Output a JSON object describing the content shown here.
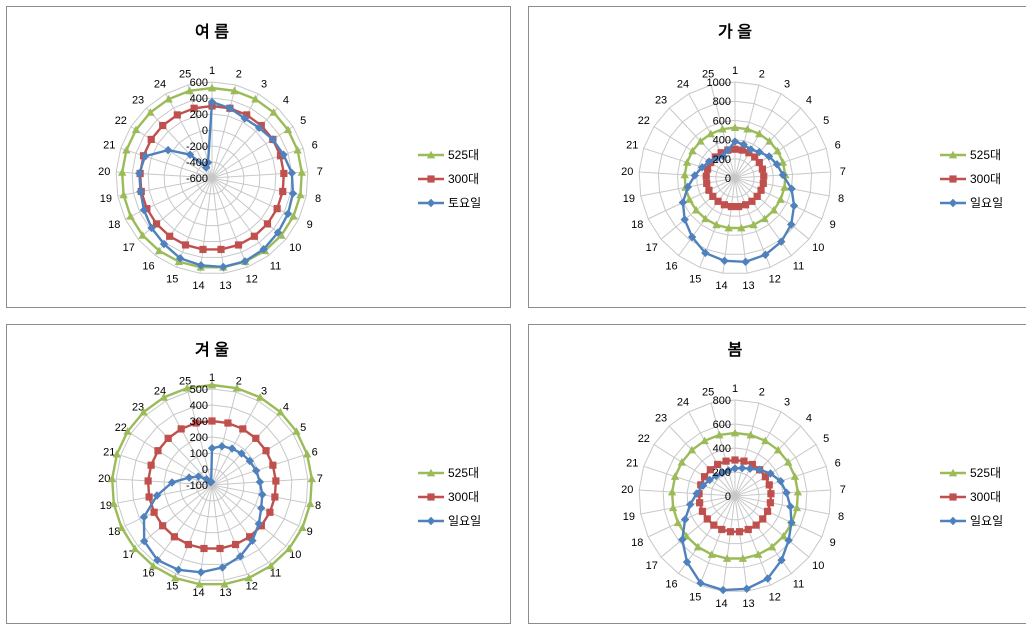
{
  "colors": {
    "525": "#9bbb59",
    "300": "#c0504d",
    "day": "#4f81bd",
    "grid": "#c8c8c8"
  },
  "chart_data": [
    {
      "type": "radar",
      "title": "여 름",
      "categories": [
        "1",
        "2",
        "3",
        "4",
        "5",
        "6",
        "7",
        "8",
        "9",
        "10",
        "11",
        "12",
        "13",
        "14",
        "15",
        "16",
        "17",
        "18",
        "19",
        "20",
        "21",
        "22",
        "23",
        "24",
        "25"
      ],
      "rlim": [
        -600,
        600
      ],
      "ticks": [
        -600,
        -400,
        -200,
        0,
        200,
        400,
        600
      ],
      "tick_labels": [
        "-600",
        "-400",
        "-200",
        "0",
        "200",
        "400",
        "600"
      ],
      "legend_position": "right",
      "series": [
        {
          "name": "525대",
          "marker": "triangle",
          "values": [
            525,
            525,
            525,
            525,
            525,
            525,
            525,
            525,
            525,
            525,
            525,
            525,
            525,
            525,
            525,
            525,
            525,
            525,
            525,
            525,
            525,
            525,
            525,
            525,
            525
          ]
        },
        {
          "name": "300대",
          "marker": "square",
          "values": [
            300,
            300,
            300,
            300,
            300,
            300,
            300,
            300,
            300,
            300,
            300,
            300,
            300,
            300,
            300,
            300,
            300,
            300,
            300,
            300,
            300,
            300,
            300,
            300,
            300
          ]
        },
        {
          "name": "토요일",
          "marker": "diamond",
          "values": [
            350,
            300,
            250,
            260,
            300,
            340,
            400,
            430,
            450,
            470,
            500,
            520,
            520,
            500,
            480,
            420,
            380,
            340,
            310,
            310,
            280,
            50,
            -200,
            -450,
            -400
          ]
        }
      ]
    },
    {
      "type": "radar",
      "title": "가 을",
      "categories": [
        "1",
        "2",
        "3",
        "4",
        "5",
        "6",
        "7",
        "8",
        "9",
        "10",
        "11",
        "12",
        "13",
        "14",
        "15",
        "16",
        "17",
        "18",
        "19",
        "20",
        "21",
        "22",
        "23",
        "24",
        "25"
      ],
      "rlim": [
        0,
        1000
      ],
      "ticks": [
        0,
        200,
        400,
        600,
        800,
        1000
      ],
      "tick_labels": [
        "0",
        "200",
        "400",
        "600",
        "800",
        "1000"
      ],
      "legend_position": "right",
      "series": [
        {
          "name": "525대",
          "marker": "triangle",
          "values": [
            525,
            525,
            525,
            525,
            525,
            525,
            525,
            525,
            525,
            525,
            525,
            525,
            525,
            525,
            525,
            525,
            525,
            525,
            525,
            525,
            525,
            525,
            525,
            525,
            525
          ]
        },
        {
          "name": "300대",
          "marker": "square",
          "values": [
            300,
            300,
            300,
            300,
            300,
            300,
            300,
            300,
            300,
            300,
            300,
            300,
            300,
            300,
            300,
            300,
            300,
            300,
            300,
            300,
            300,
            300,
            300,
            300,
            300
          ]
        },
        {
          "name": "일요일",
          "marker": "diamond",
          "values": [
            380,
            360,
            340,
            370,
            420,
            460,
            500,
            600,
            680,
            760,
            820,
            860,
            880,
            870,
            840,
            760,
            680,
            600,
            500,
            420,
            360,
            320,
            280,
            260,
            300
          ]
        }
      ]
    },
    {
      "type": "radar",
      "title": "겨 울",
      "categories": [
        "1",
        "2",
        "3",
        "4",
        "5",
        "6",
        "7",
        "8",
        "9",
        "10",
        "11",
        "12",
        "13",
        "14",
        "15",
        "16",
        "17",
        "18",
        "19",
        "20",
        "21",
        "22",
        "23",
        "24",
        "25"
      ],
      "rlim": [
        -100,
        500
      ],
      "ticks": [
        -100,
        0,
        100,
        200,
        300,
        400,
        500
      ],
      "tick_labels": [
        "-100",
        "0",
        "100",
        "200",
        "300",
        "400",
        "500"
      ],
      "legend_position": "right",
      "series": [
        {
          "name": "525대",
          "marker": "triangle",
          "values": [
            525,
            525,
            525,
            525,
            525,
            525,
            525,
            525,
            525,
            525,
            525,
            525,
            525,
            525,
            525,
            525,
            525,
            525,
            525,
            525,
            525,
            525,
            525,
            525,
            525
          ]
        },
        {
          "name": "300대",
          "marker": "square",
          "values": [
            300,
            300,
            300,
            300,
            300,
            300,
            300,
            300,
            300,
            300,
            300,
            300,
            300,
            300,
            300,
            300,
            300,
            300,
            300,
            300,
            300,
            300,
            300,
            300,
            300
          ]
        },
        {
          "name": "일요일",
          "marker": "diamond",
          "values": [
            130,
            150,
            160,
            170,
            180,
            190,
            200,
            220,
            240,
            280,
            330,
            380,
            420,
            450,
            470,
            480,
            450,
            370,
            250,
            150,
            50,
            0,
            -50,
            -80,
            -80
          ]
        }
      ]
    },
    {
      "type": "radar",
      "title": "봄",
      "categories": [
        "1",
        "2",
        "3",
        "4",
        "5",
        "6",
        "7",
        "8",
        "9",
        "10",
        "11",
        "12",
        "13",
        "14",
        "15",
        "16",
        "17",
        "18",
        "19",
        "20",
        "21",
        "22",
        "23",
        "24",
        "25"
      ],
      "rlim": [
        0,
        800
      ],
      "ticks": [
        0,
        200,
        400,
        600,
        800
      ],
      "tick_labels": [
        "0",
        "200",
        "400",
        "600",
        "800"
      ],
      "legend_position": "right",
      "series": [
        {
          "name": "525대",
          "marker": "triangle",
          "values": [
            525,
            525,
            525,
            525,
            525,
            525,
            525,
            525,
            525,
            525,
            525,
            525,
            525,
            525,
            525,
            525,
            525,
            525,
            525,
            525,
            525,
            525,
            525,
            525,
            525
          ]
        },
        {
          "name": "300대",
          "marker": "square",
          "values": [
            300,
            300,
            300,
            300,
            300,
            300,
            300,
            300,
            300,
            300,
            300,
            300,
            300,
            300,
            300,
            300,
            300,
            300,
            300,
            300,
            300,
            300,
            300,
            300,
            300
          ]
        },
        {
          "name": "일요일",
          "marker": "diamond",
          "values": [
            230,
            240,
            260,
            300,
            350,
            400,
            430,
            470,
            520,
            580,
            660,
            740,
            780,
            790,
            780,
            680,
            570,
            460,
            380,
            320,
            280,
            250,
            230,
            220,
            220
          ]
        }
      ]
    }
  ]
}
